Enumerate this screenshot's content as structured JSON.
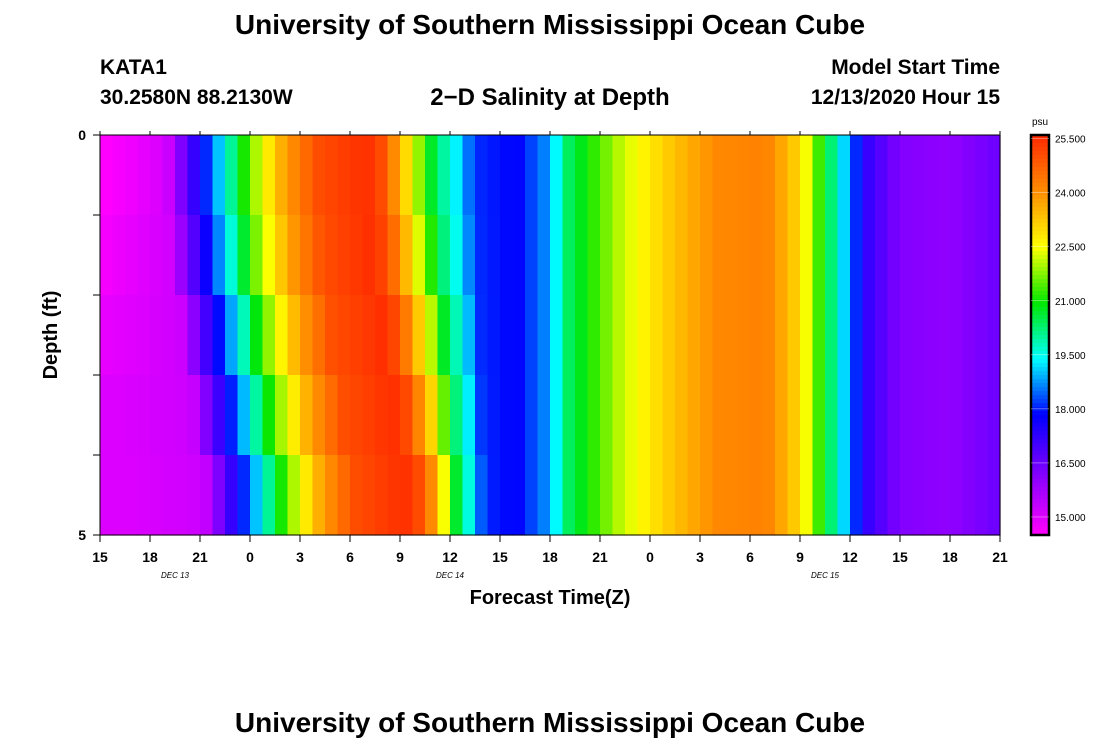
{
  "header": {
    "title": "University of Southern Mississippi Ocean Cube",
    "station": "KATA1",
    "coords": "30.2580N 88.2130W",
    "subtitle": "2−D Salinity at Depth",
    "model_start_label": "Model Start Time",
    "model_start_value": "12/13/2020 Hour 15"
  },
  "footer": {
    "title": "University of Southern Mississippi Ocean Cube"
  },
  "chart_data": {
    "type": "heatmap",
    "xlabel": "Forecast Time(Z)",
    "ylabel": "Depth (ft)",
    "y_ticks": [
      "0",
      "5"
    ],
    "ylim": [
      0,
      5
    ],
    "x_ticks": [
      "15",
      "18",
      "21",
      "0",
      "3",
      "6",
      "9",
      "12",
      "15",
      "18",
      "21",
      "0",
      "3",
      "6",
      "9",
      "12",
      "15",
      "18",
      "21"
    ],
    "x_hours": [
      0,
      3,
      6,
      9,
      12,
      15,
      18,
      21,
      24,
      27,
      30,
      33,
      36,
      39,
      42,
      45,
      48,
      51,
      54
    ],
    "date_labels": [
      {
        "text": "DEC 13",
        "hour": 4.5
      },
      {
        "text": "DEC 14",
        "hour": 21
      },
      {
        "text": "DEC 15",
        "hour": 43.5
      }
    ],
    "colorbar": {
      "unit": "psu",
      "min": 14.5,
      "max": 25.6,
      "labels": [
        "25.500",
        "24.000",
        "22.500",
        "21.000",
        "19.500",
        "18.000",
        "16.500",
        "15.000"
      ],
      "label_values": [
        25.5,
        24,
        22.5,
        21,
        19.5,
        18,
        16.5,
        15
      ]
    },
    "depth_levels": [
      0,
      1,
      2,
      3,
      4,
      5
    ],
    "surface_salinity": [
      [
        0,
        15.0
      ],
      [
        4,
        15.2
      ],
      [
        6,
        17.6
      ],
      [
        7.5,
        19.5
      ],
      [
        9,
        21.6
      ],
      [
        11,
        23.7
      ],
      [
        13,
        25.0
      ],
      [
        16,
        25.5
      ],
      [
        17,
        25.0
      ],
      [
        18.5,
        22.8
      ],
      [
        20,
        20.5
      ],
      [
        21.5,
        19.2
      ],
      [
        22.5,
        18.1
      ],
      [
        25,
        17.8
      ],
      [
        27,
        18.8
      ],
      [
        28,
        20.3
      ],
      [
        31,
        22.0
      ],
      [
        33,
        22.8
      ],
      [
        35,
        23.5
      ],
      [
        37,
        24.1
      ],
      [
        40,
        24.2
      ],
      [
        42,
        23.0
      ],
      [
        43,
        21.5
      ],
      [
        45,
        18.6
      ],
      [
        46,
        17.2
      ],
      [
        48,
        16.2
      ],
      [
        51,
        16.0
      ],
      [
        54,
        16.5
      ]
    ],
    "front_shift_hours": [
      0,
      0,
      0.6,
      1.2,
      1.9,
      2.6
    ]
  }
}
